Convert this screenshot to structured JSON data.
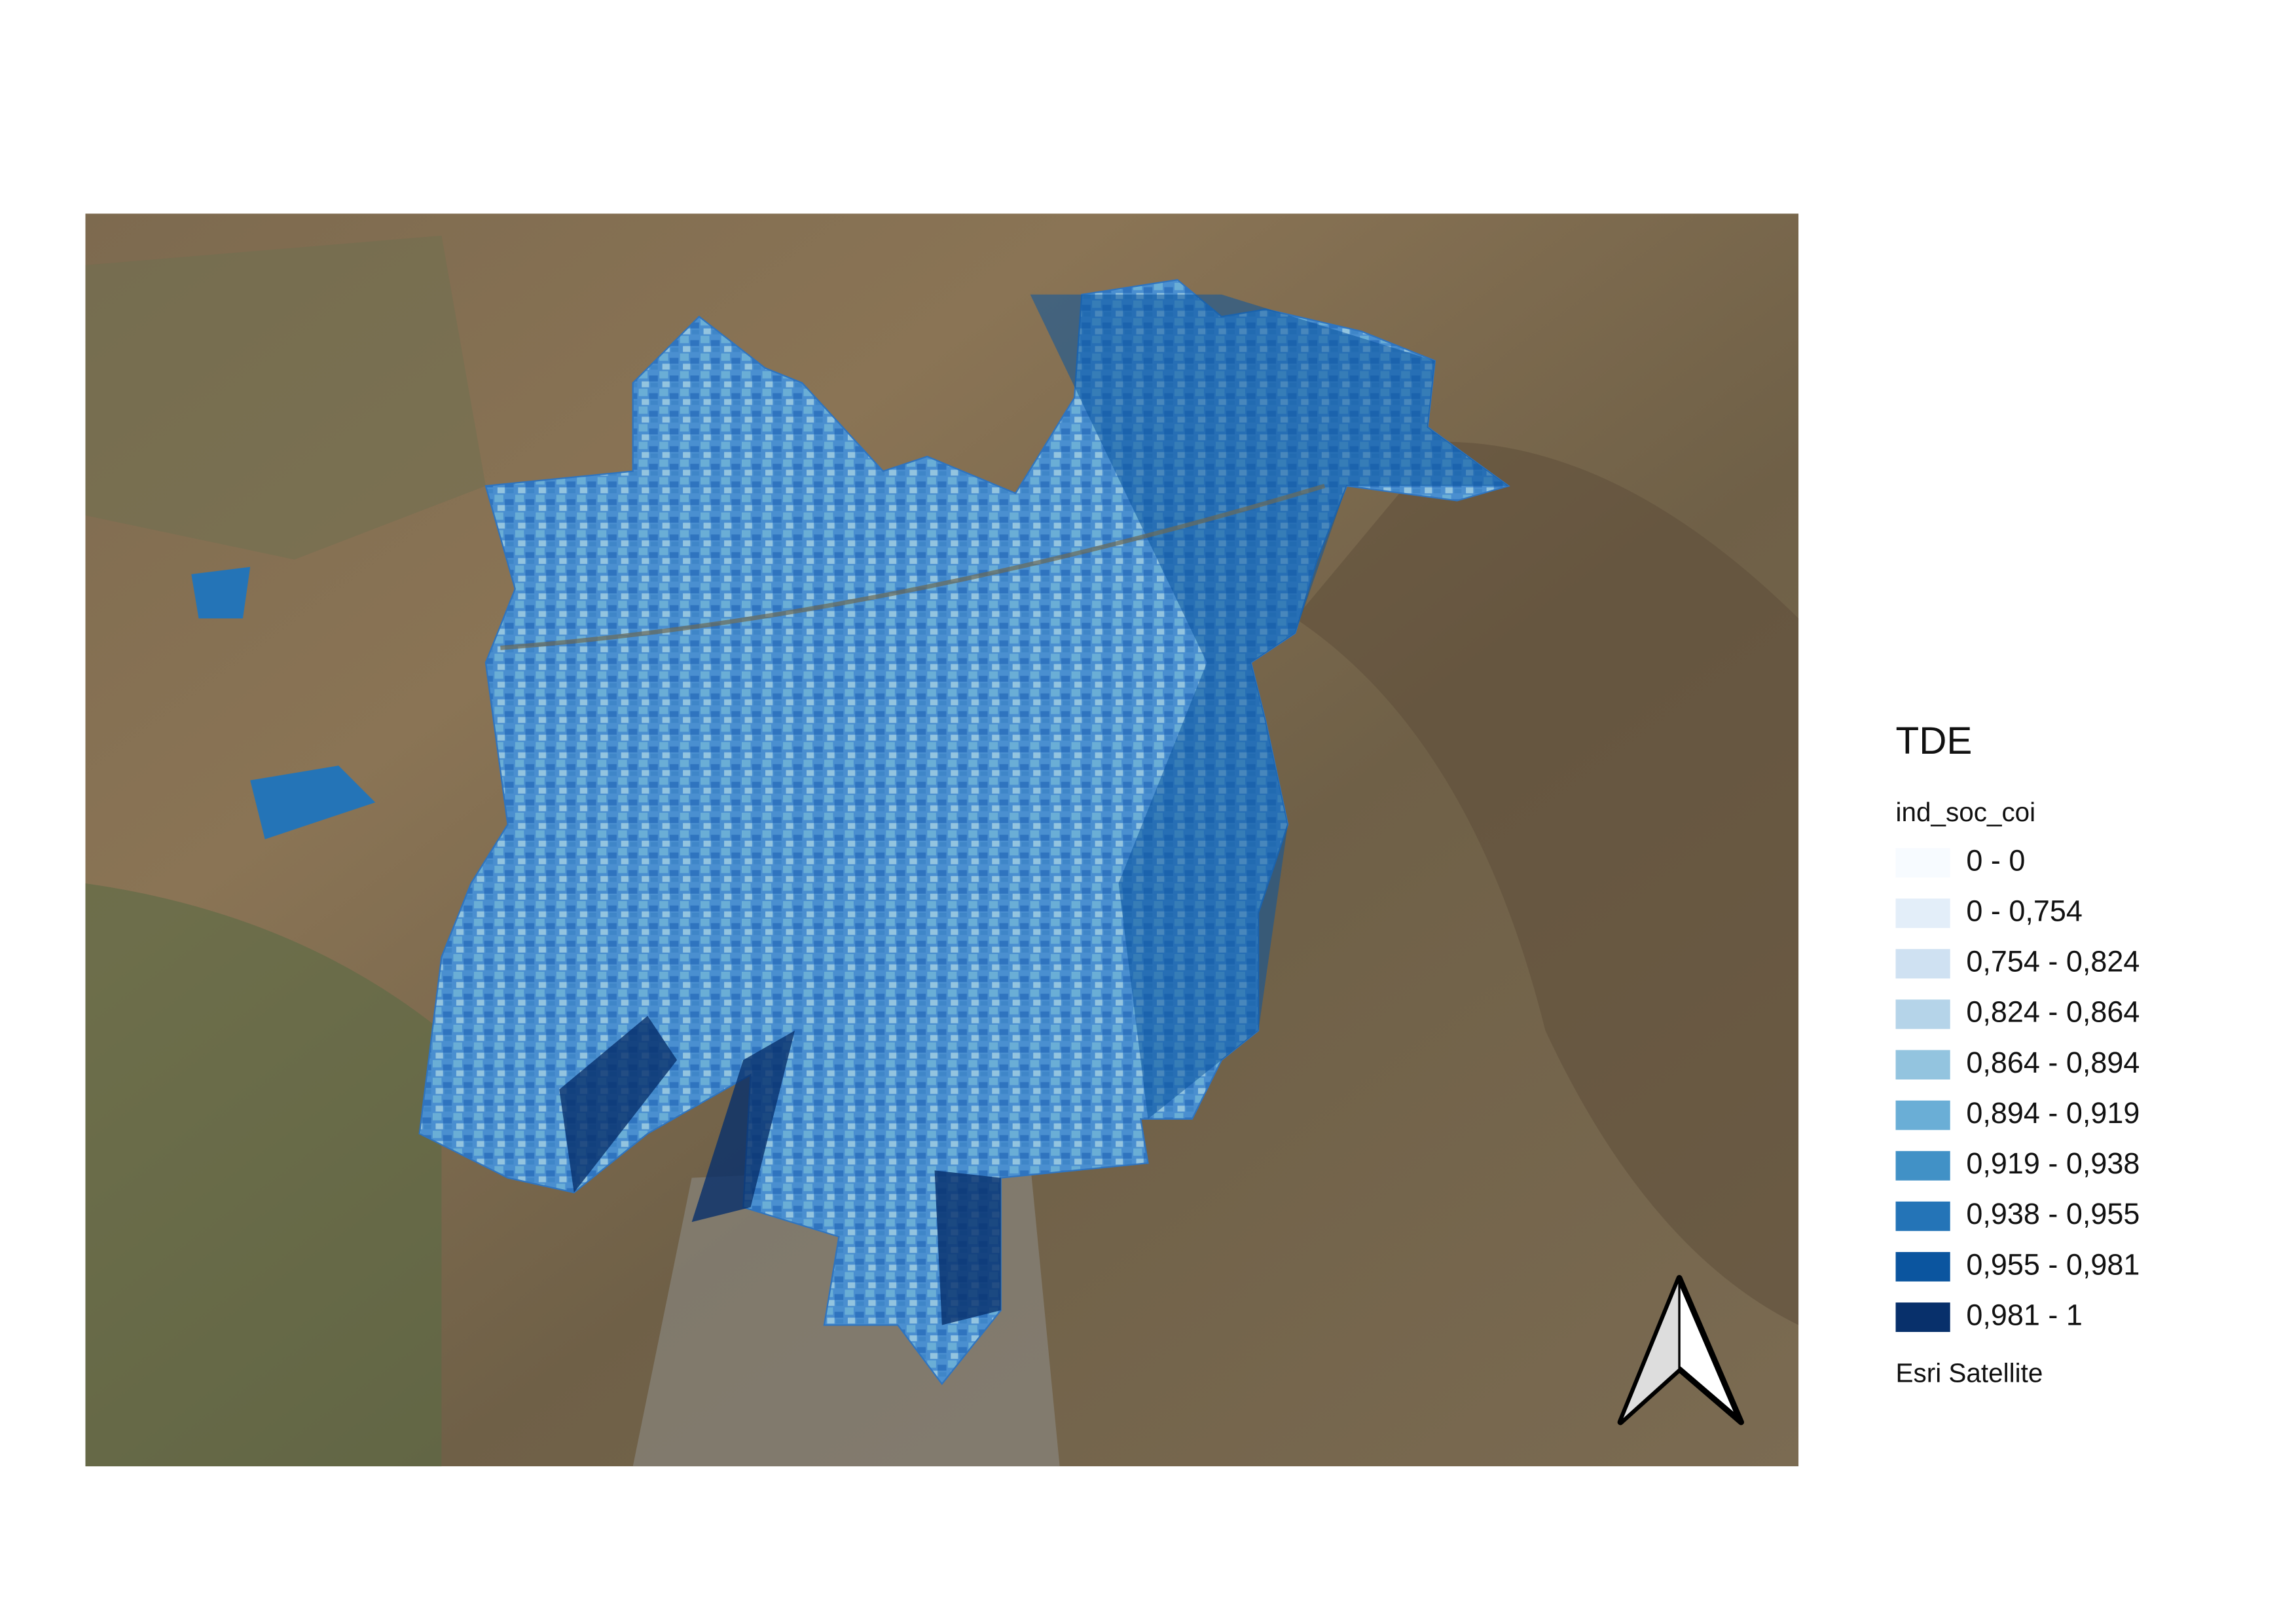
{
  "legend": {
    "title": "TDE",
    "field": "ind_soc_coi",
    "items": [
      {
        "label": "0 - 0",
        "color": "#f7fbff"
      },
      {
        "label": "0 - 0,754",
        "color": "#e3eef9"
      },
      {
        "label": "0,754 - 0,824",
        "color": "#cfe1f2"
      },
      {
        "label": "0,824 - 0,864",
        "color": "#b5d4e9"
      },
      {
        "label": "0,864 - 0,894",
        "color": "#93c4df"
      },
      {
        "label": "0,894 - 0,919",
        "color": "#6aaed6"
      },
      {
        "label": "0,919 - 0,938",
        "color": "#4191c6"
      },
      {
        "label": "0,938 - 0,955",
        "color": "#2474b7"
      },
      {
        "label": "0,955 - 0,981",
        "color": "#0b559f"
      },
      {
        "label": "0,981 - 1",
        "color": "#08306b"
      }
    ],
    "basemap": "Esri Satellite"
  }
}
